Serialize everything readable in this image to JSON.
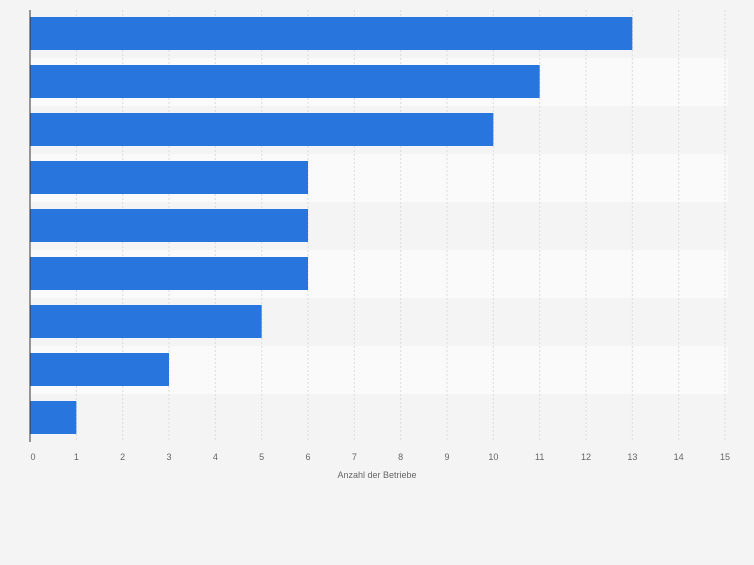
{
  "chart_data": {
    "type": "bar",
    "orientation": "horizontal",
    "categories": [
      "",
      "",
      "",
      "",
      "",
      "",
      "",
      "",
      ""
    ],
    "values": [
      13,
      11,
      10,
      6,
      6,
      6,
      5,
      3,
      1
    ],
    "title": "",
    "xlabel": "Anzahl der Betriebe",
    "ylabel": "",
    "xlim": [
      0,
      15
    ],
    "ticks": [
      "0",
      "1",
      "2",
      "3",
      "4",
      "5",
      "6",
      "7",
      "8",
      "9",
      "10",
      "11",
      "12",
      "13",
      "14",
      "15"
    ],
    "grid": true,
    "legend": "none",
    "colors": {
      "bar": "#2876dd",
      "band_light": "#fafafa",
      "band_dark": "#f4f4f4",
      "grid": "#dcdcdc",
      "axis": "#333333",
      "text": "#666666"
    }
  }
}
